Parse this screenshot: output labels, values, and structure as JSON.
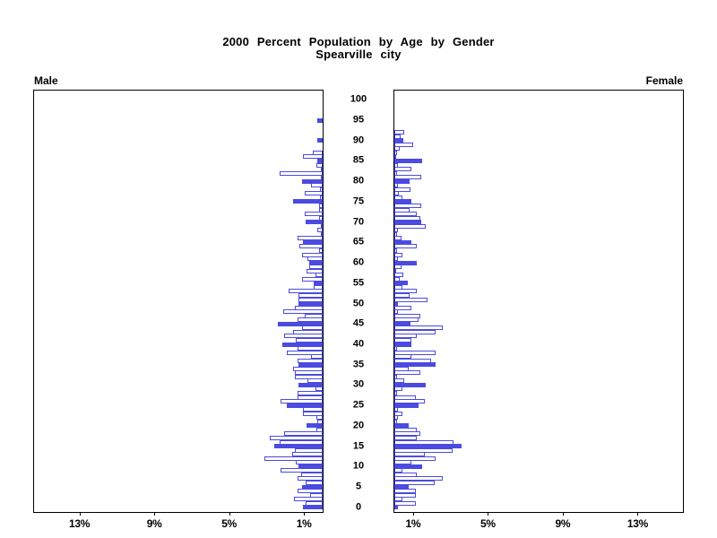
{
  "title": {
    "line1": "2000 Percent Population by Age by Gender",
    "line2": "Spearville city"
  },
  "panels": {
    "male_label": "Male",
    "female_label": "Female"
  },
  "colors": {
    "bar_fill": "#4B4BE1",
    "bar_outline": "#4B4BE1",
    "axis": "#000000"
  },
  "chart_data": {
    "type": "bar",
    "subtype": "population-pyramid",
    "title": "2000 Percent Population by Age by Gender",
    "subtitle": "Spearville city",
    "xlabel_unit": "%",
    "x_ticks_percent": [
      1,
      5,
      9,
      13
    ],
    "x_tick_labels": [
      "1%",
      "5%",
      "9%",
      "13%"
    ],
    "xlim_percent": [
      0,
      15.4
    ],
    "age_axis_ticks": [
      0,
      5,
      10,
      15,
      20,
      25,
      30,
      35,
      40,
      45,
      50,
      55,
      60,
      65,
      70,
      75,
      80,
      85,
      90,
      95,
      100
    ],
    "highlight_every": 5,
    "ages": "0-100 single years, age 0 at bottom",
    "series": [
      {
        "name": "Male",
        "direction": "left",
        "values_percent_by_age": [
          1.05,
          0.9,
          1.55,
          0.65,
          1.35,
          1.1,
          0.9,
          1.35,
          1.15,
          2.25,
          1.3,
          1.45,
          3.1,
          1.65,
          1.5,
          2.6,
          2.3,
          2.85,
          2.05,
          0.35,
          0.85,
          0.3,
          0.35,
          1.05,
          1.05,
          1.9,
          2.25,
          1.35,
          1.35,
          0.4,
          1.3,
          0.8,
          1.5,
          1.5,
          1.6,
          1.3,
          1.35,
          0.6,
          1.9,
          1.35,
          2.15,
          1.45,
          2.05,
          1.6,
          1.1,
          2.4,
          1.35,
          0.95,
          2.1,
          1.5,
          1.3,
          1.3,
          1.3,
          1.8,
          0.5,
          0.5,
          1.1,
          0.4,
          0.85,
          0.7,
          0.7,
          0.8,
          1.1,
          0.2,
          1.25,
          1.05,
          1.35,
          0.1,
          0.3,
          0.1,
          0.9,
          0.2,
          0.95,
          0.2,
          0.2,
          1.6,
          0.15,
          0.95,
          0.15,
          0.6,
          1.1,
          0.1,
          2.3,
          0.1,
          0.35,
          0.3,
          1.05,
          0.55,
          0,
          0,
          0.3,
          0,
          0,
          0,
          0,
          0.3,
          0,
          0,
          0,
          0,
          0
        ]
      },
      {
        "name": "Female",
        "direction": "right",
        "values_percent_by_age": [
          0.2,
          1.15,
          0.45,
          1.15,
          1.15,
          0.75,
          2.15,
          2.6,
          1.2,
          0.45,
          1.5,
          0.9,
          2.2,
          1.65,
          3.1,
          3.6,
          3.15,
          1.2,
          1.4,
          1.2,
          0.75,
          0.15,
          0.2,
          0.45,
          0.2,
          1.3,
          1.65,
          1.15,
          0.15,
          0.45,
          1.7,
          0.55,
          0.15,
          1.4,
          0.75,
          2.2,
          1.95,
          0.9,
          2.2,
          0.15,
          0.9,
          0.9,
          1.2,
          2.2,
          2.6,
          0.85,
          1.3,
          1.4,
          0.2,
          0.9,
          0.2,
          1.75,
          0.8,
          1.2,
          0.45,
          0.7,
          0.3,
          0.5,
          0.1,
          0.4,
          1.2,
          0.2,
          0.45,
          0.15,
          1.2,
          0.9,
          0.4,
          0.15,
          0.2,
          1.7,
          1.45,
          1.4,
          1.2,
          0.8,
          1.45,
          0.9,
          0.45,
          0.25,
          0.85,
          0.2,
          0.8,
          1.45,
          0.15,
          0.9,
          0.2,
          1.5,
          0.1,
          0.15,
          0.3,
          1.0,
          0.5,
          0.35,
          0.55,
          0,
          0,
          0,
          0,
          0,
          0,
          0,
          0
        ]
      }
    ],
    "legend": "Filled blue bars mark ages that are multiples of 5; other single-year bars are white with blue outline"
  }
}
